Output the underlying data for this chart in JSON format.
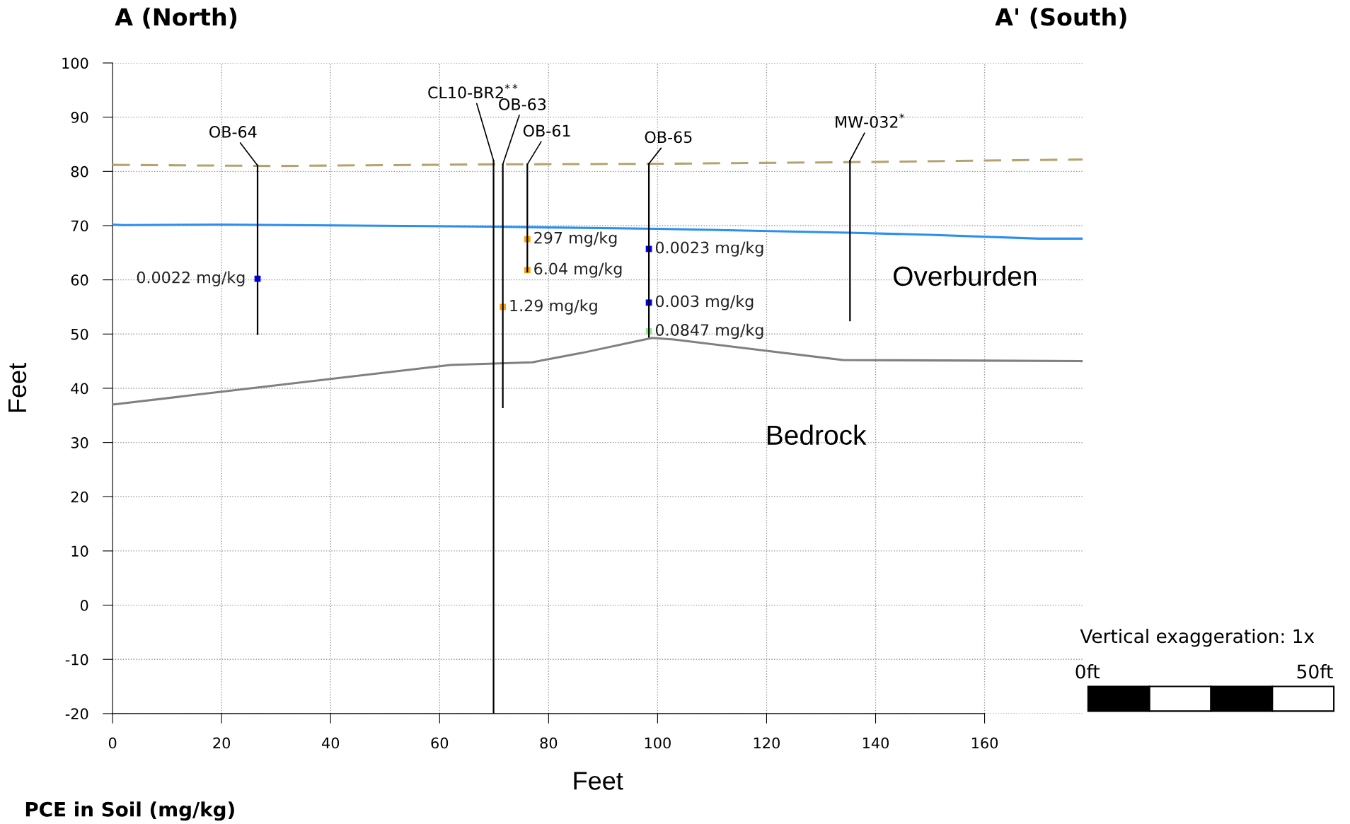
{
  "chart_data": {
    "type": "line",
    "title": "A (North)",
    "xlabel": "Feet",
    "ylabel": "Feet",
    "xlim": [
      0,
      178
    ],
    "ylim": [
      -20,
      100
    ],
    "xticks": [
      0,
      20,
      40,
      60,
      80,
      100,
      120,
      140,
      160
    ],
    "yticks": [
      -20,
      -10,
      0,
      10,
      20,
      30,
      40,
      50,
      60,
      70,
      80,
      90,
      100
    ],
    "grid": true,
    "series": [
      {
        "type": "line",
        "color": "#b5a36f",
        "line_style": "dashed",
        "x": [
          0,
          30,
          70,
          100,
          135,
          178
        ],
        "values": [
          81.2,
          81.0,
          81.3,
          81.4,
          81.7,
          82.2
        ]
      },
      {
        "type": "line",
        "color": "#2a8ff0",
        "line_style": "solid",
        "x": [
          0,
          2,
          20,
          70,
          100,
          135,
          150,
          170,
          178
        ],
        "values": [
          70.2,
          70.1,
          70.2,
          69.8,
          69.4,
          68.7,
          68.3,
          67.6,
          67.6
        ]
      },
      {
        "type": "line",
        "color": "#808080",
        "line_style": "solid",
        "x": [
          0,
          62,
          77,
          86,
          99,
          103,
          120,
          134,
          160,
          178
        ],
        "values": [
          37.0,
          44.3,
          44.8,
          46.5,
          49.3,
          49.0,
          46.9,
          45.2,
          45.1,
          45.0
        ]
      },
      {
        "type": "line",
        "color": "#000000",
        "line_style": "solid",
        "x": [
          26.6,
          26.6
        ],
        "values": [
          81.1,
          50.0
        ]
      },
      {
        "type": "line",
        "color": "#000000",
        "line_style": "solid",
        "x": [
          69.9,
          69.9
        ],
        "values": [
          82.0,
          -20.0
        ]
      },
      {
        "type": "line",
        "color": "#000000",
        "line_style": "solid",
        "x": [
          71.6,
          71.6
        ],
        "values": [
          81.3,
          36.5
        ]
      },
      {
        "type": "line",
        "color": "#000000",
        "line_style": "solid",
        "x": [
          76.1,
          76.1
        ],
        "values": [
          81.3,
          61.5
        ]
      },
      {
        "type": "line",
        "color": "#000000",
        "line_style": "solid",
        "x": [
          98.4,
          98.4
        ],
        "values": [
          81.4,
          49.5
        ]
      },
      {
        "type": "line",
        "color": "#000000",
        "line_style": "solid",
        "x": [
          135.3,
          135.3
        ],
        "values": [
          82.0,
          52.5
        ]
      },
      {
        "type": "scatter",
        "marker": "square",
        "x": [
          26.6,
          76.1,
          76.1,
          71.6,
          98.4,
          98.4,
          98.4
        ],
        "values": [
          60.2,
          67.5,
          61.8,
          55.0,
          65.7,
          55.8,
          50.5
        ],
        "colors": [
          "#0000ff",
          "#ffa500",
          "#ffa500",
          "#ffa500",
          "#0000ff",
          "#0000ff",
          "#90ee90"
        ]
      }
    ],
    "annotations": [
      {
        "text": "OB-64",
        "x": 26.6,
        "y": 81.1
      },
      {
        "text": "CL10-BR2$^{**}$",
        "x": 69.9,
        "y": 82.0
      },
      {
        "text": "OB-63",
        "x": 71.6,
        "y": 81.3
      },
      {
        "text": "OB-61",
        "x": 76.1,
        "y": 81.3
      },
      {
        "text": "OB-65",
        "x": 98.4,
        "y": 81.4
      },
      {
        "text": "MW-032$^{*}$",
        "x": 135.3,
        "y": 82.0
      },
      {
        "text": "0.0022 mg/kg",
        "x": 26.6,
        "y": 60.2
      },
      {
        "text": "297 mg/kg",
        "x": 76.1,
        "y": 67.5
      },
      {
        "text": "6.04 mg/kg",
        "x": 76.1,
        "y": 61.8
      },
      {
        "text": "1.29 mg/kg",
        "x": 71.6,
        "y": 55.0
      },
      {
        "text": "0.0023 mg/kg",
        "x": 98.4,
        "y": 65.7
      },
      {
        "text": "0.003 mg/kg",
        "x": 98.4,
        "y": 55.8
      },
      {
        "text": "0.0847 mg/kg",
        "x": 98.4,
        "y": 50.5
      },
      "A' (South)",
      "Overburden",
      "Bedrock",
      "Vertical exaggeration: 1x",
      "0ft",
      "50ft",
      "PCE in Soil (mg/kg)"
    ]
  }
}
